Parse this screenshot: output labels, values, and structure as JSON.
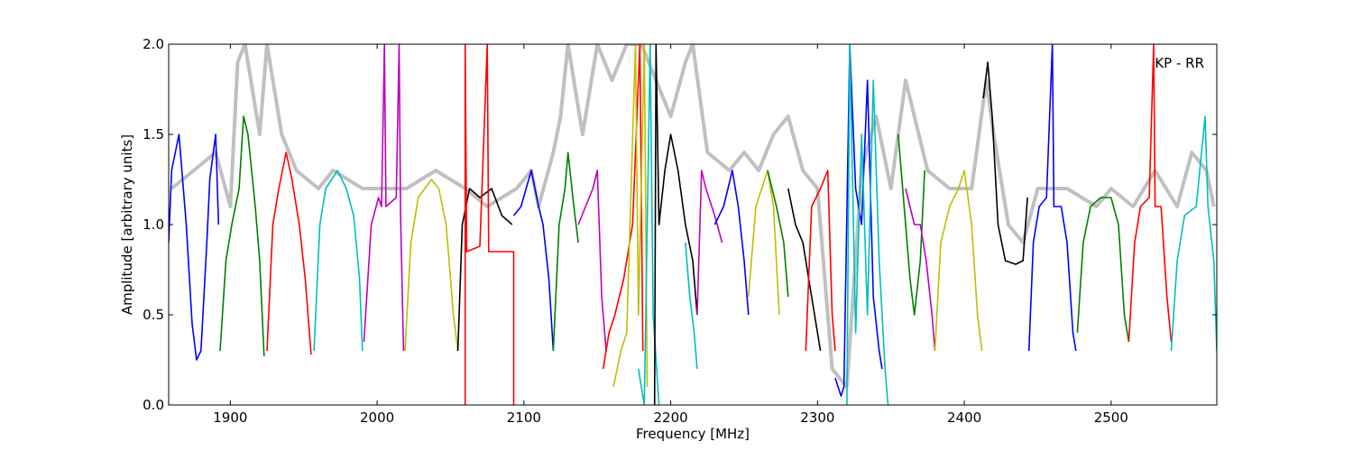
{
  "chart_data": {
    "type": "line",
    "title": "",
    "annotation": "KP - RR",
    "xlabel": "Frequency [MHz]",
    "ylabel": "Amplitude [arbitrary units]",
    "xlim": [
      1858,
      2572
    ],
    "ylim": [
      0,
      2.0
    ],
    "x_ticks": [
      1900,
      2000,
      2100,
      2200,
      2300,
      2400,
      2500
    ],
    "y_ticks": [
      0.0,
      0.5,
      1.0,
      1.5,
      2.0
    ],
    "x_tick_labels": [
      "1900",
      "2000",
      "2100",
      "2200",
      "2300",
      "2400",
      "2500"
    ],
    "y_tick_labels": [
      "0.0",
      "0.5",
      "1.0",
      "1.5",
      "2.0"
    ],
    "grid": false,
    "background_color": "#c0c0c0",
    "background_series": [
      [
        1860,
        1.2
      ],
      [
        1890,
        1.4
      ],
      [
        1900,
        1.1
      ],
      [
        1905,
        1.9
      ],
      [
        1910,
        2.0
      ],
      [
        1920,
        1.5
      ],
      [
        1925,
        2.0
      ],
      [
        1935,
        1.5
      ],
      [
        1945,
        1.3
      ],
      [
        1960,
        1.2
      ],
      [
        1970,
        1.3
      ],
      [
        1990,
        1.2
      ],
      [
        2005,
        1.2
      ],
      [
        2020,
        1.2
      ],
      [
        2040,
        1.3
      ],
      [
        2060,
        1.2
      ],
      [
        2075,
        1.1
      ],
      [
        2095,
        1.2
      ],
      [
        2105,
        1.3
      ],
      [
        2110,
        1.1
      ],
      [
        2120,
        1.4
      ],
      [
        2125,
        1.6
      ],
      [
        2130,
        2.0
      ],
      [
        2140,
        1.5
      ],
      [
        2150,
        2.0
      ],
      [
        2160,
        1.8
      ],
      [
        2170,
        2.0
      ],
      [
        2180,
        2.0
      ],
      [
        2200,
        1.6
      ],
      [
        2210,
        1.9
      ],
      [
        2215,
        2.0
      ],
      [
        2225,
        1.4
      ],
      [
        2240,
        1.3
      ],
      [
        2250,
        1.4
      ],
      [
        2260,
        1.3
      ],
      [
        2270,
        1.5
      ],
      [
        2280,
        1.6
      ],
      [
        2290,
        1.3
      ],
      [
        2300,
        1.2
      ],
      [
        2310,
        0.2
      ],
      [
        2320,
        0.1
      ],
      [
        2330,
        1.3
      ],
      [
        2340,
        1.6
      ],
      [
        2350,
        1.2
      ],
      [
        2360,
        1.8
      ],
      [
        2375,
        1.3
      ],
      [
        2390,
        1.2
      ],
      [
        2405,
        1.2
      ],
      [
        2415,
        1.8
      ],
      [
        2420,
        1.5
      ],
      [
        2430,
        1.0
      ],
      [
        2440,
        0.9
      ],
      [
        2450,
        1.2
      ],
      [
        2470,
        1.2
      ],
      [
        2490,
        1.1
      ],
      [
        2500,
        1.2
      ],
      [
        2515,
        1.1
      ],
      [
        2530,
        1.3
      ],
      [
        2545,
        1.1
      ],
      [
        2555,
        1.4
      ],
      [
        2565,
        1.3
      ],
      [
        2570,
        1.1
      ]
    ],
    "series": [
      {
        "color": "#0000ff",
        "points": [
          [
            1858,
            0.9
          ],
          [
            1860,
            1.3
          ],
          [
            1865,
            1.5
          ],
          [
            1870,
            1.0
          ],
          [
            1874,
            0.45
          ],
          [
            1877,
            0.25
          ],
          [
            1880,
            0.3
          ],
          [
            1884,
            0.9
          ],
          [
            1886,
            1.25
          ],
          [
            1890,
            1.5
          ],
          [
            1892,
            1.0
          ]
        ]
      },
      {
        "color": "#008000",
        "points": [
          [
            1893,
            0.3
          ],
          [
            1897,
            0.8
          ],
          [
            1901,
            1.0
          ],
          [
            1906,
            1.2
          ],
          [
            1909,
            1.6
          ],
          [
            1912,
            1.5
          ],
          [
            1917,
            1.1
          ],
          [
            1920,
            0.8
          ],
          [
            1923,
            0.27
          ]
        ]
      },
      {
        "color": "#ff0000",
        "points": [
          [
            1925,
            0.3
          ],
          [
            1929,
            1.0
          ],
          [
            1933,
            1.2
          ],
          [
            1938,
            1.4
          ],
          [
            1942,
            1.25
          ],
          [
            1947,
            1.0
          ],
          [
            1951,
            0.7
          ],
          [
            1955,
            0.28
          ]
        ]
      },
      {
        "color": "#00bfbf",
        "points": [
          [
            1957,
            0.3
          ],
          [
            1961,
            1.0
          ],
          [
            1965,
            1.2
          ],
          [
            1973,
            1.3
          ],
          [
            1979,
            1.2
          ],
          [
            1984,
            1.05
          ],
          [
            1988,
            0.7
          ],
          [
            1990,
            0.3
          ]
        ]
      },
      {
        "color": "#bf00bf",
        "points": [
          [
            1991,
            0.35
          ],
          [
            1996,
            1.0
          ],
          [
            2001,
            1.15
          ],
          [
            2003,
            1.1
          ],
          [
            2005,
            2.0
          ],
          [
            2006,
            1.1
          ],
          [
            2013,
            1.15
          ],
          [
            2015,
            2.0
          ],
          [
            2016,
            1.05
          ],
          [
            2018,
            0.3
          ]
        ]
      },
      {
        "color": "#bfbf00",
        "points": [
          [
            2019,
            0.3
          ],
          [
            2023,
            0.9
          ],
          [
            2028,
            1.15
          ],
          [
            2037,
            1.25
          ],
          [
            2042,
            1.2
          ],
          [
            2047,
            1.0
          ],
          [
            2052,
            0.5
          ],
          [
            2055,
            0.3
          ]
        ]
      },
      {
        "color": "#000000",
        "points": [
          [
            2055,
            0.3
          ],
          [
            2058,
            1.0
          ],
          [
            2063,
            1.2
          ],
          [
            2070,
            1.15
          ],
          [
            2078,
            1.2
          ],
          [
            2085,
            1.05
          ],
          [
            2092,
            1.0
          ]
        ]
      },
      {
        "color": "#ff0000",
        "points": [
          [
            2060,
            0.0
          ],
          [
            2060,
            2.0
          ],
          [
            2061,
            0.85
          ],
          [
            2070,
            0.88
          ],
          [
            2075,
            2.0
          ],
          [
            2076,
            0.85
          ],
          [
            2085,
            0.85
          ],
          [
            2093,
            0.85
          ],
          [
            2093,
            0.0
          ]
        ]
      },
      {
        "color": "#0000ff",
        "points": [
          [
            2093,
            1.05
          ],
          [
            2098,
            1.1
          ],
          [
            2105,
            1.3
          ],
          [
            2110,
            1.1
          ],
          [
            2113,
            1.0
          ],
          [
            2117,
            0.7
          ],
          [
            2120,
            0.3
          ]
        ]
      },
      {
        "color": "#008000",
        "points": [
          [
            2120,
            0.3
          ],
          [
            2124,
            1.0
          ],
          [
            2128,
            1.2
          ],
          [
            2130,
            1.4
          ],
          [
            2134,
            1.1
          ],
          [
            2137,
            0.9
          ]
        ]
      },
      {
        "color": "#bf00bf",
        "points": [
          [
            2137,
            1.0
          ],
          [
            2142,
            1.1
          ],
          [
            2147,
            1.2
          ],
          [
            2150,
            1.3
          ],
          [
            2153,
            0.6
          ],
          [
            2156,
            0.3
          ]
        ]
      },
      {
        "color": "#ff0000",
        "points": [
          [
            2154,
            0.2
          ],
          [
            2158,
            0.4
          ],
          [
            2162,
            0.5
          ],
          [
            2168,
            0.7
          ],
          [
            2174,
            1.0
          ],
          [
            2179,
            2.0
          ],
          [
            2181,
            0.3
          ]
        ]
      },
      {
        "color": "#bfbf00",
        "points": [
          [
            2161,
            0.1
          ],
          [
            2166,
            0.3
          ],
          [
            2170,
            0.4
          ],
          [
            2176,
            2.0
          ],
          [
            2178,
            0.5
          ],
          [
            2182,
            2.0
          ],
          [
            2184,
            0.1
          ]
        ]
      },
      {
        "color": "#00bfbf",
        "points": [
          [
            2178,
            0.2
          ],
          [
            2182,
            0.0
          ],
          [
            2186,
            2.0
          ],
          [
            2188,
            0.5
          ],
          [
            2192,
            0.0
          ]
        ]
      },
      {
        "color": "#000000",
        "points": [
          [
            2189,
            0.0
          ],
          [
            2190,
            2.0
          ],
          [
            2192,
            1.0
          ],
          [
            2196,
            1.3
          ],
          [
            2200,
            1.5
          ],
          [
            2205,
            1.3
          ],
          [
            2210,
            1.0
          ],
          [
            2215,
            0.8
          ],
          [
            2218,
            0.5
          ]
        ]
      },
      {
        "color": "#00bfbf",
        "points": [
          [
            2210,
            0.9
          ],
          [
            2213,
            0.6
          ],
          [
            2216,
            0.4
          ],
          [
            2218,
            0.2
          ]
        ]
      },
      {
        "color": "#bf00bf",
        "points": [
          [
            2218,
            0.5
          ],
          [
            2221,
            1.3
          ],
          [
            2224,
            1.2
          ],
          [
            2230,
            1.05
          ],
          [
            2235,
            0.9
          ]
        ]
      },
      {
        "color": "#0000ff",
        "points": [
          [
            2230,
            1.0
          ],
          [
            2236,
            1.1
          ],
          [
            2242,
            1.3
          ],
          [
            2246,
            1.1
          ],
          [
            2250,
            0.8
          ],
          [
            2253,
            0.5
          ]
        ]
      },
      {
        "color": "#bfbf00",
        "points": [
          [
            2253,
            0.6
          ],
          [
            2258,
            1.1
          ],
          [
            2262,
            1.2
          ],
          [
            2266,
            1.3
          ],
          [
            2270,
            1.1
          ],
          [
            2274,
            0.5
          ]
        ]
      },
      {
        "color": "#008000",
        "points": [
          [
            2266,
            1.3
          ],
          [
            2272,
            1.1
          ],
          [
            2277,
            0.9
          ],
          [
            2280,
            0.6
          ]
        ]
      },
      {
        "color": "#000000",
        "points": [
          [
            2280,
            1.2
          ],
          [
            2285,
            1.0
          ],
          [
            2290,
            0.9
          ],
          [
            2296,
            0.6
          ],
          [
            2302,
            0.3
          ]
        ]
      },
      {
        "color": "#ff0000",
        "points": [
          [
            2292,
            0.3
          ],
          [
            2296,
            1.1
          ],
          [
            2302,
            1.2
          ],
          [
            2307,
            1.3
          ],
          [
            2310,
            0.5
          ],
          [
            2312,
            0.3
          ]
        ]
      },
      {
        "color": "#0000ff",
        "points": [
          [
            2312,
            0.15
          ],
          [
            2316,
            0.05
          ],
          [
            2318,
            0.1
          ],
          [
            2322,
            2.0
          ],
          [
            2326,
            1.2
          ],
          [
            2330,
            1.0
          ],
          [
            2334,
            1.8
          ],
          [
            2338,
            0.6
          ],
          [
            2342,
            0.3
          ],
          [
            2344,
            0.2
          ]
        ]
      },
      {
        "color": "#00bfbf",
        "points": [
          [
            2320,
            0.0
          ],
          [
            2322,
            2.0
          ],
          [
            2326,
            0.4
          ],
          [
            2330,
            1.5
          ],
          [
            2334,
            0.5
          ],
          [
            2338,
            1.8
          ],
          [
            2342,
            0.8
          ],
          [
            2346,
            0.2
          ],
          [
            2348,
            0.0
          ]
        ]
      },
      {
        "color": "#008000",
        "points": [
          [
            2355,
            1.5
          ],
          [
            2360,
            1.0
          ],
          [
            2363,
            0.7
          ],
          [
            2366,
            0.5
          ],
          [
            2370,
            0.8
          ],
          [
            2373,
            1.3
          ]
        ]
      },
      {
        "color": "#bf00bf",
        "points": [
          [
            2360,
            1.2
          ],
          [
            2366,
            1.0
          ],
          [
            2370,
            1.0
          ],
          [
            2374,
            0.8
          ],
          [
            2378,
            0.5
          ],
          [
            2380,
            0.3
          ]
        ]
      },
      {
        "color": "#bfbf00",
        "points": [
          [
            2380,
            0.3
          ],
          [
            2384,
            0.9
          ],
          [
            2390,
            1.1
          ],
          [
            2396,
            1.2
          ],
          [
            2400,
            1.3
          ],
          [
            2405,
            1.0
          ],
          [
            2409,
            0.5
          ],
          [
            2412,
            0.3
          ]
        ]
      },
      {
        "color": "#000000",
        "points": [
          [
            2413,
            1.7
          ],
          [
            2416,
            1.9
          ],
          [
            2419,
            1.6
          ],
          [
            2423,
            1.0
          ],
          [
            2428,
            0.8
          ],
          [
            2435,
            0.78
          ],
          [
            2440,
            0.8
          ],
          [
            2443,
            1.15
          ]
        ]
      },
      {
        "color": "#0000ff",
        "points": [
          [
            2444,
            0.3
          ],
          [
            2447,
            0.9
          ],
          [
            2451,
            1.1
          ],
          [
            2456,
            1.15
          ],
          [
            2460,
            2.0
          ],
          [
            2461,
            1.1
          ],
          [
            2466,
            1.1
          ],
          [
            2470,
            0.9
          ],
          [
            2474,
            0.4
          ],
          [
            2476,
            0.3
          ]
        ]
      },
      {
        "color": "#008000",
        "points": [
          [
            2477,
            0.4
          ],
          [
            2481,
            0.9
          ],
          [
            2486,
            1.1
          ],
          [
            2493,
            1.15
          ],
          [
            2500,
            1.15
          ],
          [
            2505,
            1.0
          ],
          [
            2509,
            0.5
          ],
          [
            2512,
            0.35
          ]
        ]
      },
      {
        "color": "#ff0000",
        "points": [
          [
            2512,
            0.35
          ],
          [
            2516,
            0.9
          ],
          [
            2520,
            1.1
          ],
          [
            2526,
            1.15
          ],
          [
            2529,
            2.0
          ],
          [
            2530,
            1.1
          ],
          [
            2534,
            1.1
          ],
          [
            2538,
            0.6
          ],
          [
            2541,
            0.35
          ]
        ]
      },
      {
        "color": "#00bfbf",
        "points": [
          [
            2541,
            0.3
          ],
          [
            2545,
            0.8
          ],
          [
            2550,
            1.05
          ],
          [
            2558,
            1.1
          ],
          [
            2564,
            1.6
          ],
          [
            2566,
            1.1
          ],
          [
            2570,
            0.8
          ],
          [
            2572,
            0.3
          ]
        ]
      }
    ]
  }
}
